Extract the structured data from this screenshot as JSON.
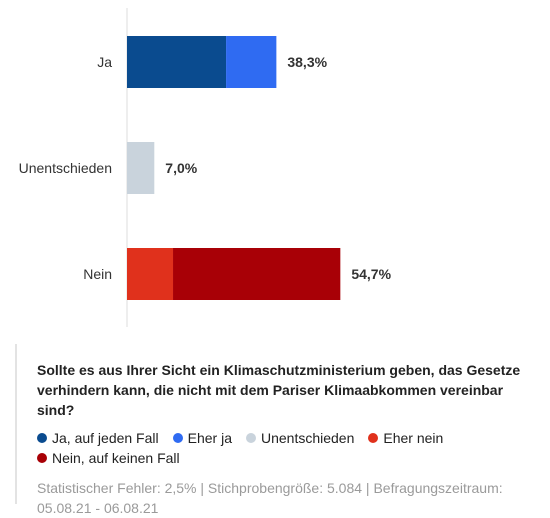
{
  "chart_data": {
    "type": "bar",
    "orientation": "horizontal",
    "stacked": true,
    "categories": [
      "Ja",
      "Unentschieden",
      "Nein"
    ],
    "series": [
      {
        "name": "Ja, auf jeden Fall",
        "color": "#0a4b8f",
        "values": [
          25.4,
          0,
          0
        ]
      },
      {
        "name": "Eher ja",
        "color": "#2f6bf2",
        "values": [
          12.9,
          0,
          0
        ]
      },
      {
        "name": "Unentschieden",
        "color": "#c9d3dc",
        "values": [
          0,
          7.0,
          0
        ]
      },
      {
        "name": "Eher nein",
        "color": "#e0311c",
        "values": [
          0,
          0,
          11.8
        ]
      },
      {
        "name": "Nein, auf keinen Fall",
        "color": "#a80006",
        "values": [
          0,
          0,
          42.9
        ]
      }
    ],
    "totals": [
      "38,3%",
      "7,0%",
      "54,7%"
    ],
    "xlim": [
      0,
      100
    ],
    "grid": false
  },
  "info": {
    "question": "Sollte es aus Ihrer Sicht ein Klimaschutzministerium geben, das Gesetze verhindern kann, die nicht mit dem Pariser Klimaabkommen vereinbar sind?",
    "footer": "Statistischer Fehler: 2,5% | Stichprobengröße: 5.084 | Befragungszeitraum: 05.08.21 - 06.08.21"
  }
}
